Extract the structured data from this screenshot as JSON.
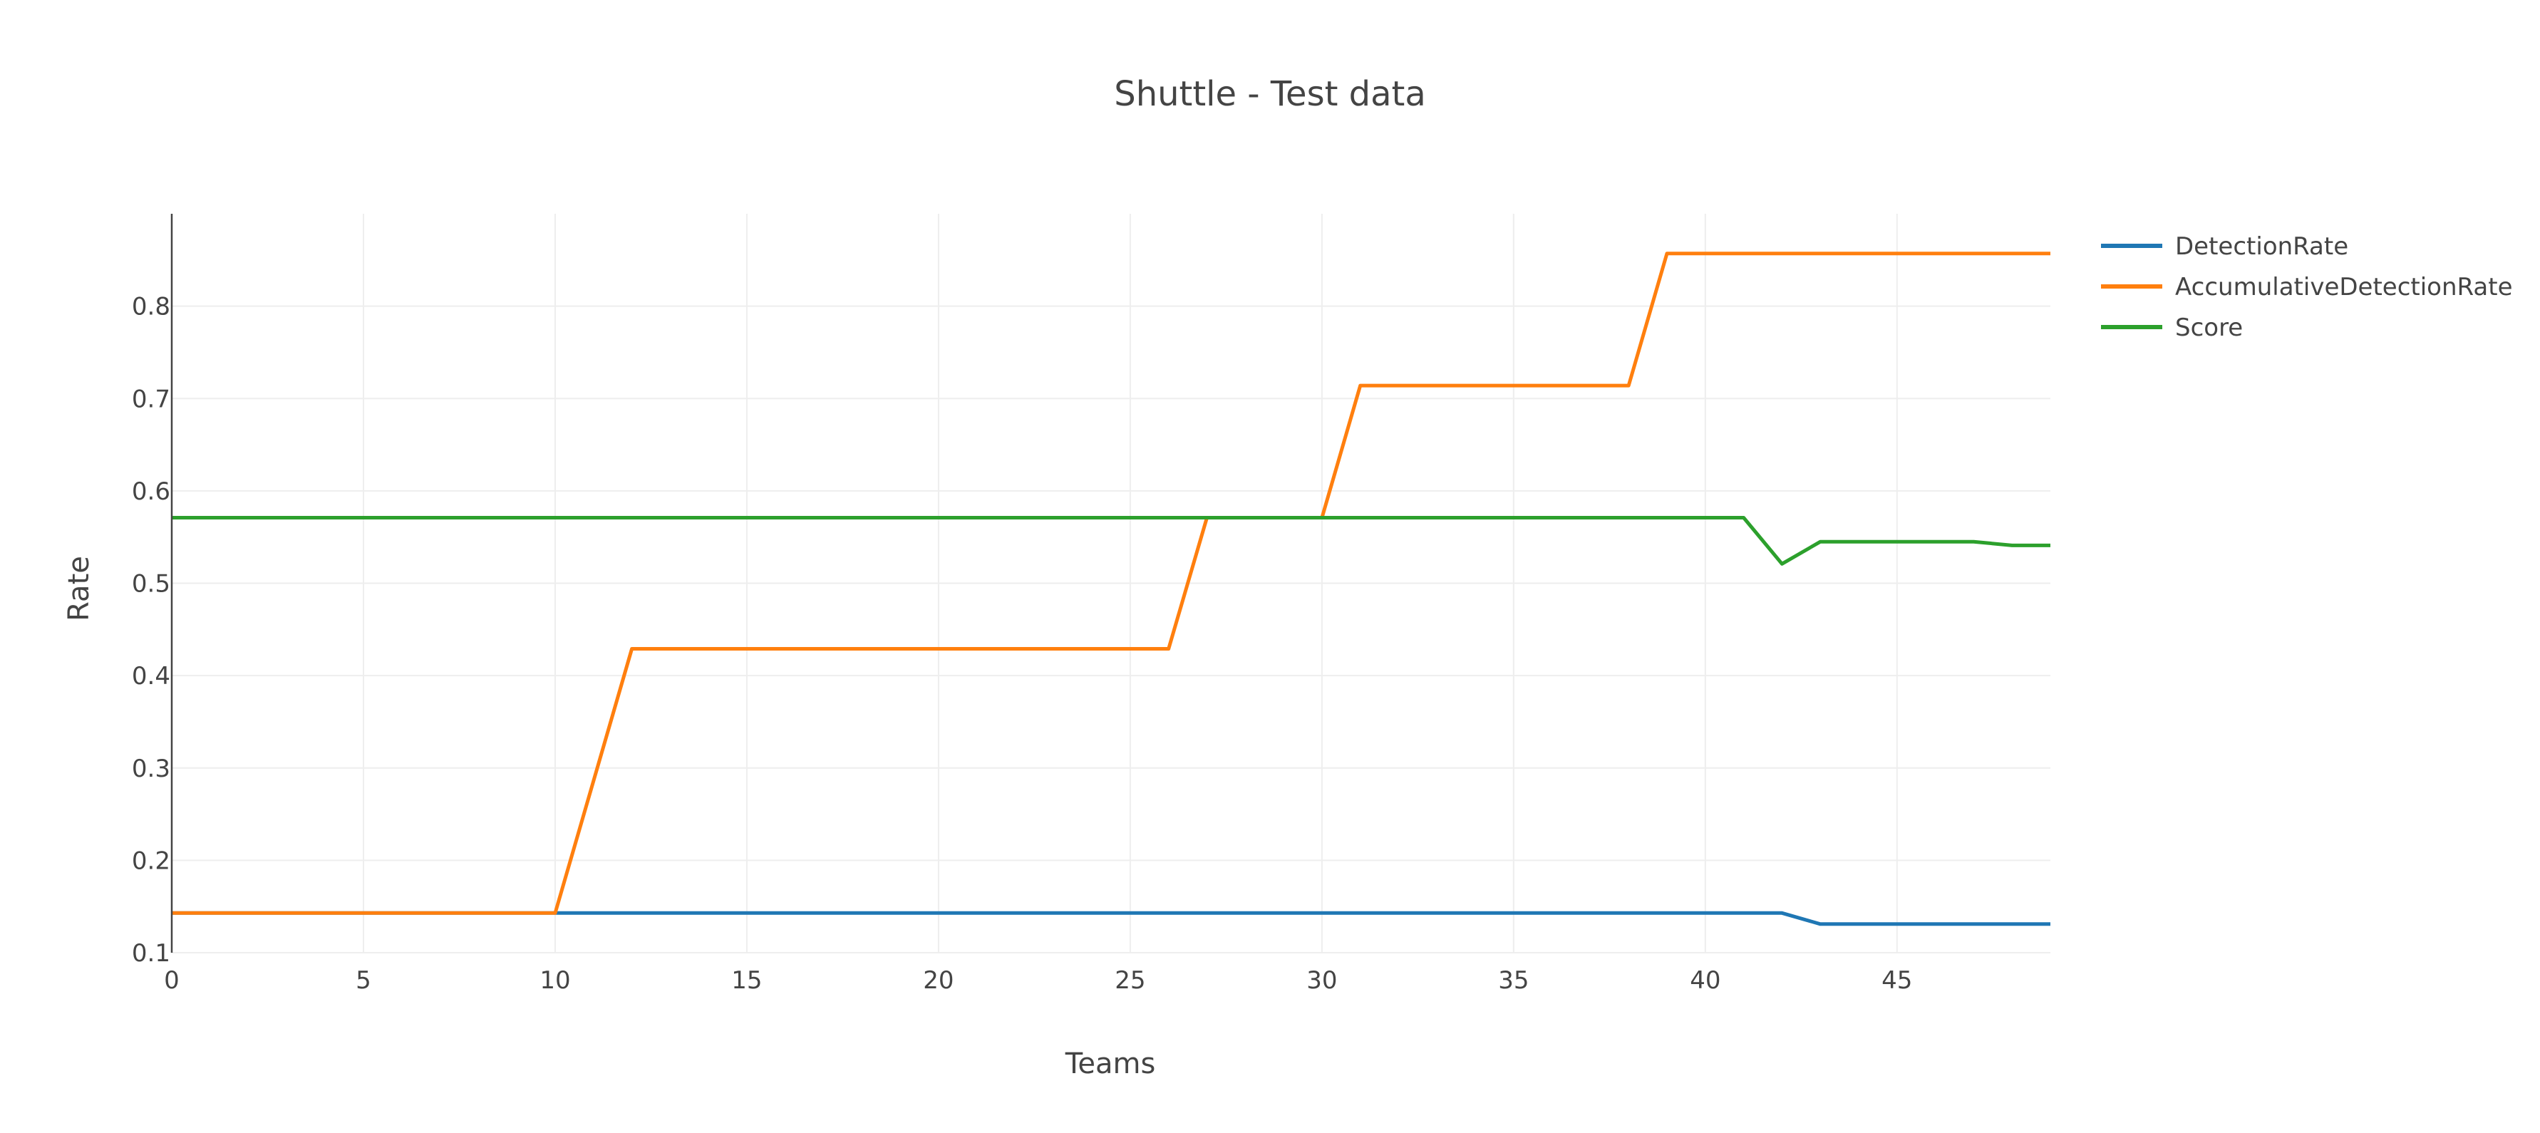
{
  "chart_data": {
    "type": "line",
    "title": "Shuttle - Test data",
    "xlabel": "Teams",
    "ylabel": "Rate",
    "xlim": [
      0,
      49
    ],
    "ylim": [
      0.1,
      0.9
    ],
    "x_ticks": [
      0,
      5,
      10,
      15,
      20,
      25,
      30,
      35,
      40,
      45
    ],
    "y_ticks": [
      0.1,
      0.2,
      0.3,
      0.4,
      0.5,
      0.6,
      0.7,
      0.8
    ],
    "grid": true,
    "legend_position": "top-right",
    "series": [
      {
        "name": "DetectionRate",
        "color": "#1f77b4",
        "points": [
          [
            0,
            0.143
          ],
          [
            42,
            0.143
          ],
          [
            43,
            0.131
          ],
          [
            49,
            0.131
          ]
        ]
      },
      {
        "name": "AccumulativeDetectionRate",
        "color": "#ff7f0e",
        "points": [
          [
            0,
            0.143
          ],
          [
            10,
            0.143
          ],
          [
            12,
            0.429
          ],
          [
            26,
            0.429
          ],
          [
            27,
            0.571
          ],
          [
            30,
            0.571
          ],
          [
            31,
            0.714
          ],
          [
            38,
            0.714
          ],
          [
            39,
            0.857
          ],
          [
            49,
            0.857
          ]
        ]
      },
      {
        "name": "Score",
        "color": "#2ca02c",
        "points": [
          [
            0,
            0.571
          ],
          [
            41,
            0.571
          ],
          [
            42,
            0.521
          ],
          [
            43,
            0.545
          ],
          [
            47,
            0.545
          ],
          [
            48,
            0.541
          ],
          [
            49,
            0.541
          ]
        ]
      }
    ]
  }
}
